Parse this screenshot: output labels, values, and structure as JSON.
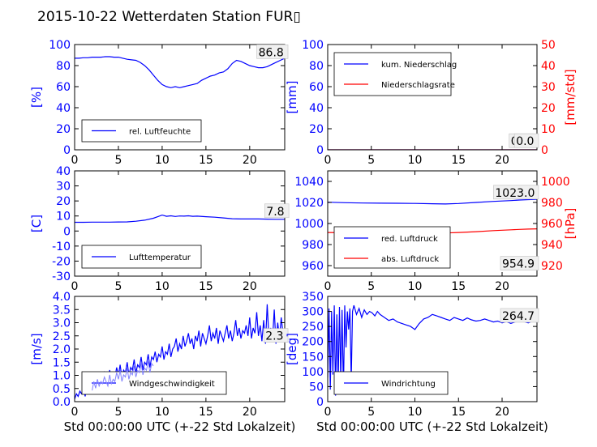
{
  "title": "2015-10-22 Wetterdaten Station FUR▯",
  "colors": {
    "blue": "#0000ff",
    "red": "#ff0000",
    "lightblue": "#8080ff"
  },
  "chart_data": [
    {
      "id": "humidity",
      "type": "line",
      "ylabel": "[%]",
      "xlim": [
        0,
        24
      ],
      "xticks": [
        0,
        5,
        10,
        15,
        20
      ],
      "ylim": [
        0,
        100
      ],
      "yticks": [
        0,
        20,
        40,
        60,
        80,
        100
      ],
      "legend": {
        "placement": "lower-left",
        "entries": [
          "rel. Luftfeuchte"
        ]
      },
      "annotations": [
        {
          "text": "86.8",
          "x": 21.0,
          "y": 89
        }
      ],
      "series": [
        {
          "name": "rel. Luftfeuchte",
          "color": "blue",
          "x": [
            0,
            0.5,
            1,
            1.5,
            2,
            2.5,
            3,
            3.5,
            4,
            4.5,
            5,
            5.5,
            6,
            6.5,
            7,
            7.5,
            8,
            8.5,
            9,
            9.5,
            10,
            10.5,
            11,
            11.5,
            12,
            12.5,
            13,
            13.5,
            14,
            14.5,
            15,
            15.5,
            16,
            16.5,
            17,
            17.5,
            18,
            18.5,
            19,
            19.5,
            20,
            20.5,
            21,
            21.5,
            22,
            22.5,
            23,
            23.5,
            24
          ],
          "y": [
            87,
            87,
            87.5,
            87.5,
            88,
            88,
            88,
            88.5,
            88.5,
            88,
            88,
            87,
            86,
            85.5,
            85,
            83,
            80,
            76,
            71,
            66,
            62,
            60,
            59,
            60,
            59,
            60,
            61,
            62,
            63,
            66,
            68,
            70,
            71,
            73,
            74,
            77,
            82,
            85,
            84,
            82,
            80,
            79,
            78,
            78,
            79,
            81,
            83,
            85,
            87
          ]
        }
      ]
    },
    {
      "id": "precip",
      "type": "line",
      "ylabel": "[mm]",
      "ylabel2": "[mm/std]",
      "xlim": [
        0,
        24
      ],
      "xticks": [
        0,
        5,
        10,
        15,
        20
      ],
      "ylim": [
        0,
        100
      ],
      "yticks": [
        0,
        20,
        40,
        60,
        80,
        100
      ],
      "ylim2": [
        0,
        50
      ],
      "yticks2": [
        0,
        10,
        20,
        30,
        40,
        50
      ],
      "legend": {
        "placement": "upper-left",
        "entries": [
          "kum. Niederschlag",
          "Niederschlagsrate"
        ]
      },
      "annotations": [
        {
          "text": "0.0",
          "x": 21.0,
          "y": 4.5
        },
        {
          "text": "0.0",
          "x": 21.6,
          "y": 4.5
        }
      ],
      "series": [
        {
          "name": "kum. Niederschlag",
          "color": "blue",
          "axis": "left",
          "x": [
            0,
            24
          ],
          "y": [
            0,
            0
          ]
        },
        {
          "name": "Niederschlagsrate",
          "color": "red",
          "axis": "right",
          "x": [
            0,
            24
          ],
          "y": [
            0,
            0
          ]
        }
      ]
    },
    {
      "id": "temperature",
      "type": "line",
      "ylabel": "[C]",
      "xlim": [
        0,
        24
      ],
      "xticks": [
        0,
        5,
        10,
        15,
        20
      ],
      "ylim": [
        -30,
        40
      ],
      "yticks": [
        -30,
        -20,
        -10,
        0,
        10,
        20,
        30,
        40
      ],
      "legend": {
        "placement": "lower-left",
        "entries": [
          "Lufttemperatur"
        ]
      },
      "annotations": [
        {
          "text": "7.8",
          "x": 21.9,
          "y": 10.5
        }
      ],
      "series": [
        {
          "name": "Lufttemperatur",
          "color": "blue",
          "x": [
            0,
            1,
            2,
            3,
            4,
            5,
            6,
            7,
            8,
            9,
            9.5,
            10,
            10.5,
            11,
            11.5,
            12,
            12.5,
            13,
            13.5,
            14,
            15,
            16,
            17,
            18,
            19,
            20,
            21,
            22,
            23,
            24
          ],
          "y": [
            5.8,
            5.8,
            5.9,
            5.9,
            5.9,
            6,
            6.1,
            6.5,
            7.2,
            8.5,
            9.5,
            10.6,
            9.8,
            10.1,
            9.7,
            10,
            9.9,
            10.1,
            9.8,
            9.9,
            9.5,
            9.2,
            8.7,
            8.2,
            8,
            8,
            8,
            7.9,
            7.8,
            7.8
          ]
        }
      ]
    },
    {
      "id": "pressure",
      "type": "line",
      "ylabel2": "[hPa]",
      "xlim": [
        0,
        24
      ],
      "xticks": [
        0,
        5,
        10,
        15,
        20
      ],
      "ylim": [
        950,
        1050
      ],
      "yticks": [
        960,
        980,
        1000,
        1020,
        1040
      ],
      "ylim2": [
        910,
        1010
      ],
      "yticks2": [
        920,
        940,
        960,
        980,
        1000
      ],
      "legend": {
        "placement": "lower-left",
        "entries": [
          "red. Luftdruck",
          "abs. Luftdruck"
        ]
      },
      "annotations": [
        {
          "text": "1023.0",
          "x": 19.2,
          "y": 1025.5
        },
        {
          "text": "954.9",
          "x": 20.0,
          "y": 958
        }
      ],
      "series": [
        {
          "name": "red. Luftdruck",
          "color": "blue",
          "axis": "left",
          "x": [
            0,
            2,
            4,
            6,
            8,
            10,
            12,
            13.5,
            15,
            17,
            19,
            21,
            22,
            23,
            24
          ],
          "y": [
            1020.2,
            1019.8,
            1019.5,
            1019.3,
            1019.2,
            1019.1,
            1018.8,
            1018.5,
            1019,
            1020,
            1021,
            1021.8,
            1022.3,
            1022.7,
            1023
          ]
        },
        {
          "name": "abs. Luftdruck",
          "color": "red",
          "axis": "right",
          "x": [
            0,
            2,
            4,
            6,
            8,
            10,
            12,
            13.5,
            15,
            17,
            19,
            21,
            22,
            23,
            24
          ],
          "y": [
            951.5,
            951.2,
            951,
            950.8,
            950.8,
            950.8,
            950.9,
            951,
            951.5,
            952.2,
            953.2,
            954,
            954.4,
            954.7,
            954.9
          ]
        }
      ]
    },
    {
      "id": "windspeed",
      "type": "line",
      "ylabel": "[m/s]",
      "xlabel": "Std 00:00:00 UTC (+-22 Std Lokalzeit)",
      "xlim": [
        0,
        24
      ],
      "xticks": [
        0,
        5,
        10,
        15,
        20
      ],
      "ylim": [
        0,
        4
      ],
      "yticks": [
        0.0,
        0.5,
        1.0,
        1.5,
        2.0,
        2.5,
        3.0,
        3.5,
        4.0
      ],
      "legend": {
        "placement": "lower-left",
        "entries": [
          "Windgeschwindigkeit"
        ]
      },
      "annotations": [
        {
          "text": "2.3",
          "x": 21.8,
          "y": 2.35
        }
      ],
      "series": [
        {
          "name": "Windgeschwindigkeit",
          "color": "blue",
          "x": [
            0,
            0.2,
            0.4,
            0.6,
            0.8,
            1,
            1.2,
            1.4,
            1.6,
            1.8,
            2,
            2.2,
            2.4,
            2.6,
            2.8,
            3,
            3.2,
            3.4,
            3.6,
            3.8,
            4,
            4.2,
            4.4,
            4.6,
            4.8,
            5,
            5.2,
            5.4,
            5.6,
            5.8,
            6,
            6.2,
            6.4,
            6.6,
            6.8,
            7,
            7.2,
            7.4,
            7.6,
            7.8,
            8,
            8.2,
            8.4,
            8.6,
            8.8,
            9,
            9.2,
            9.4,
            9.6,
            9.8,
            10,
            10.2,
            10.4,
            10.6,
            10.8,
            11,
            11.2,
            11.4,
            11.6,
            11.8,
            12,
            12.2,
            12.4,
            12.6,
            12.8,
            13,
            13.2,
            13.4,
            13.6,
            13.8,
            14,
            14.2,
            14.4,
            14.6,
            14.8,
            15,
            15.2,
            15.4,
            15.6,
            15.8,
            16,
            16.2,
            16.4,
            16.6,
            16.8,
            17,
            17.2,
            17.4,
            17.6,
            17.8,
            18,
            18.2,
            18.4,
            18.6,
            18.8,
            19,
            19.2,
            19.4,
            19.6,
            19.8,
            20,
            20.2,
            20.4,
            20.6,
            20.8,
            21,
            21.2,
            21.4,
            21.6,
            21.8,
            22,
            22.2,
            22.4,
            22.6,
            22.8,
            23,
            23.2,
            23.4,
            23.6,
            23.8,
            24
          ],
          "y": [
            0.1,
            0.3,
            0.2,
            0.4,
            0.3,
            0.5,
            0.2,
            0.6,
            0.4,
            0.7,
            0.5,
            0.9,
            0.6,
            1.0,
            0.7,
            0.9,
            0.8,
            1.1,
            0.9,
            0.7,
            1.2,
            0.8,
            1.0,
            0.9,
            1.3,
            1.0,
            1.4,
            0.9,
            1.2,
            1.1,
            1.5,
            1.0,
            1.3,
            1.2,
            1.6,
            1.1,
            1.4,
            1.3,
            1.7,
            1.2,
            1.5,
            1.4,
            1.8,
            1.3,
            1.7,
            1.6,
            1.9,
            1.5,
            1.8,
            1.7,
            2.1,
            1.6,
            1.9,
            1.8,
            2.2,
            1.7,
            2.0,
            2.1,
            2.4,
            1.9,
            2.2,
            2.0,
            2.5,
            2.1,
            2.3,
            2.6,
            2.2,
            2.4,
            2.0,
            2.5,
            2.3,
            2.7,
            2.1,
            2.6,
            2.4,
            2.2,
            2.5,
            2.9,
            2.3,
            2.6,
            2.4,
            2.8,
            2.2,
            2.7,
            2.5,
            2.3,
            2.6,
            2.9,
            2.4,
            2.7,
            2.3,
            2.6,
            3.1,
            2.5,
            2.8,
            2.4,
            2.7,
            2.6,
            2.9,
            2.5,
            3.2,
            2.4,
            2.8,
            2.6,
            3.4,
            2.5,
            2.9,
            2.3,
            3.1,
            2.2,
            3.7,
            2.4,
            2.8,
            2.3,
            3.5,
            2.2,
            3.0,
            2.4,
            3.2,
            2.6,
            2.3
          ]
        }
      ]
    },
    {
      "id": "winddir",
      "type": "line",
      "ylabel": "[deg]",
      "xlabel": "Std 00:00:00 UTC (+-22 Std Lokalzeit)",
      "xlim": [
        0,
        24
      ],
      "xticks": [
        0,
        5,
        10,
        15,
        20
      ],
      "ylim": [
        0,
        350
      ],
      "yticks": [
        0,
        50,
        100,
        150,
        200,
        250,
        300,
        350
      ],
      "legend": {
        "placement": "lower-left",
        "entries": [
          "Windrichtung"
        ]
      },
      "annotations": [
        {
          "text": "264.7",
          "x": 20.0,
          "y": 272
        }
      ],
      "series": [
        {
          "name": "Windrichtung",
          "color": "blue",
          "x": [
            0,
            0.15,
            0.3,
            0.45,
            0.6,
            0.75,
            0.9,
            1.05,
            1.2,
            1.35,
            1.5,
            1.65,
            1.8,
            1.95,
            2.1,
            2.25,
            2.4,
            2.55,
            2.7,
            2.85,
            3,
            3.3,
            3.6,
            3.9,
            4.2,
            4.5,
            4.8,
            5.1,
            5.4,
            5.7,
            6,
            6.5,
            7,
            7.5,
            8,
            8.5,
            9,
            9.5,
            10,
            10.5,
            11,
            11.5,
            12,
            12.5,
            13,
            13.5,
            14,
            14.5,
            15,
            15.5,
            16,
            16.5,
            17,
            17.5,
            18,
            18.5,
            19,
            19.5,
            20,
            20.5,
            21,
            21.5,
            22,
            22.5,
            23,
            23.5,
            24
          ],
          "y": [
            80,
            310,
            40,
            300,
            90,
            320,
            20,
            290,
            60,
            315,
            70,
            305,
            30,
            320,
            180,
            300,
            240,
            310,
            70,
            300,
            320,
            290,
            310,
            280,
            305,
            290,
            300,
            295,
            285,
            300,
            290,
            280,
            270,
            275,
            265,
            260,
            255,
            250,
            240,
            260,
            275,
            280,
            290,
            285,
            280,
            275,
            270,
            280,
            275,
            270,
            278,
            272,
            268,
            270,
            275,
            270,
            265,
            268,
            262,
            266,
            260,
            265,
            270,
            266,
            262,
            268,
            264.7
          ]
        }
      ]
    }
  ]
}
